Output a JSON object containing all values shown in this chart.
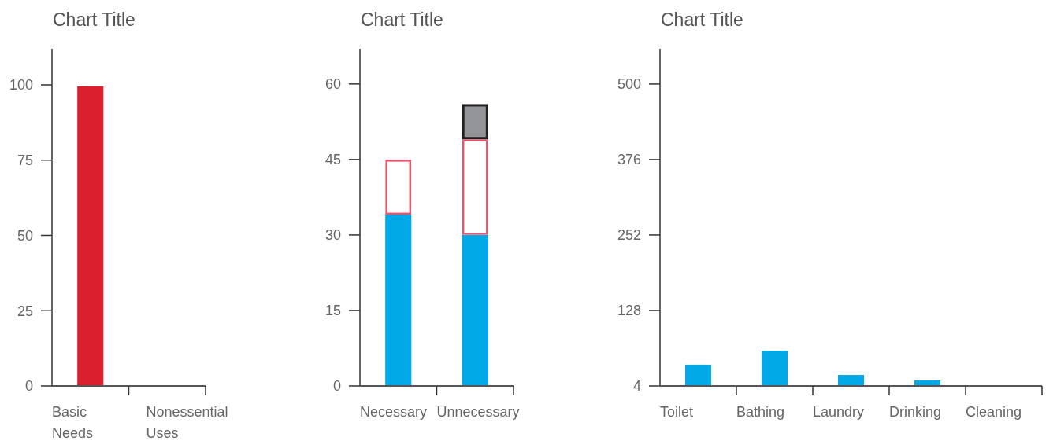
{
  "chart_data": [
    {
      "type": "bar",
      "title": "Chart Title",
      "categories": [
        "Basic Needs",
        "Nonessential Uses"
      ],
      "values": [
        99.5,
        0
      ],
      "color": "#dc1f2e",
      "ylim": [
        0,
        112
      ],
      "yticks": [
        0,
        25,
        50,
        75,
        100
      ]
    },
    {
      "type": "bar",
      "title": "Chart Title",
      "categories": [
        "Necessary",
        "Unnecessary"
      ],
      "stacked": true,
      "series": [
        {
          "color": "#00a9e6",
          "values": [
            34,
            30
          ]
        },
        {
          "color": "#e8546c",
          "values": [
            11,
            19
          ]
        },
        {
          "color": "#939598",
          "values": [
            0,
            7
          ]
        }
      ],
      "ylim": [
        0,
        67
      ],
      "yticks": [
        0,
        15,
        30,
        45,
        60
      ]
    },
    {
      "type": "bar",
      "title": "Chart Title",
      "categories": [
        "Toilet",
        "Bathing",
        "Laundry",
        "Drinking",
        "Cleaning"
      ],
      "values": [
        35,
        58,
        18,
        9,
        null
      ],
      "base": [
        4,
        4,
        4,
        4,
        null
      ],
      "color": "#00a9e6",
      "ylim": [
        4,
        558
      ],
      "yticks": [
        4,
        128,
        252,
        376,
        500
      ]
    }
  ]
}
